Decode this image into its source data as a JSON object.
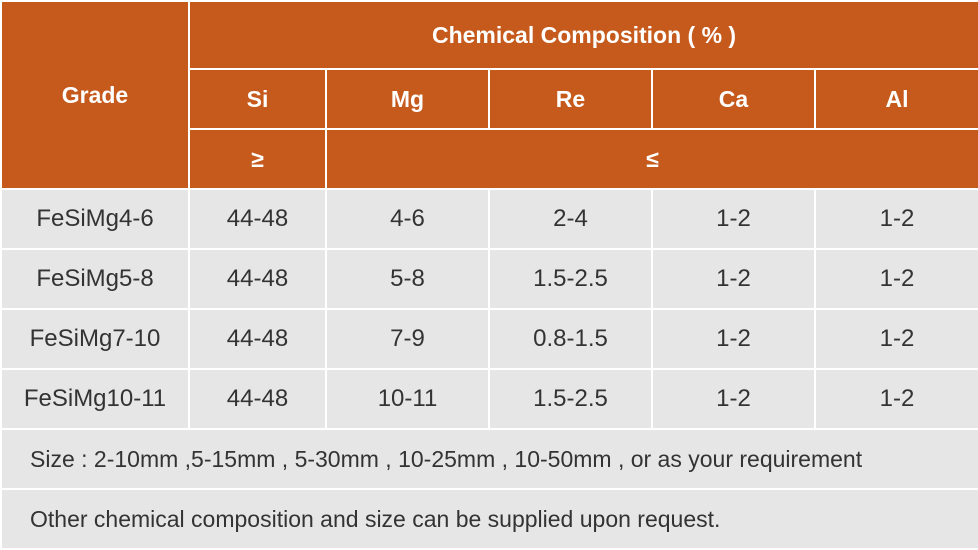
{
  "table": {
    "header": {
      "grade": "Grade",
      "group": "Chemical Composition ( % )",
      "columns": [
        "Si",
        "Mg",
        "Re",
        "Ca",
        "Al"
      ],
      "limits": [
        "≥",
        "≤"
      ]
    },
    "rows": [
      [
        "FeSiMg4-6",
        "44-48",
        "4-6",
        "2-4",
        "1-2",
        "1-2"
      ],
      [
        "FeSiMg5-8",
        "44-48",
        "5-8",
        "1.5-2.5",
        "1-2",
        "1-2"
      ],
      [
        "FeSiMg7-10",
        "44-48",
        "7-9",
        "0.8-1.5",
        "1-2",
        "1-2"
      ],
      [
        "FeSiMg10-11",
        "44-48",
        "10-11",
        "1.5-2.5",
        "1-2",
        "1-2"
      ]
    ],
    "notes": [
      "Size : 2-10mm ,5-15mm , 5-30mm , 10-25mm , 10-50mm , or as your requirement",
      "Other chemical composition and size can be supplied upon request."
    ]
  }
}
